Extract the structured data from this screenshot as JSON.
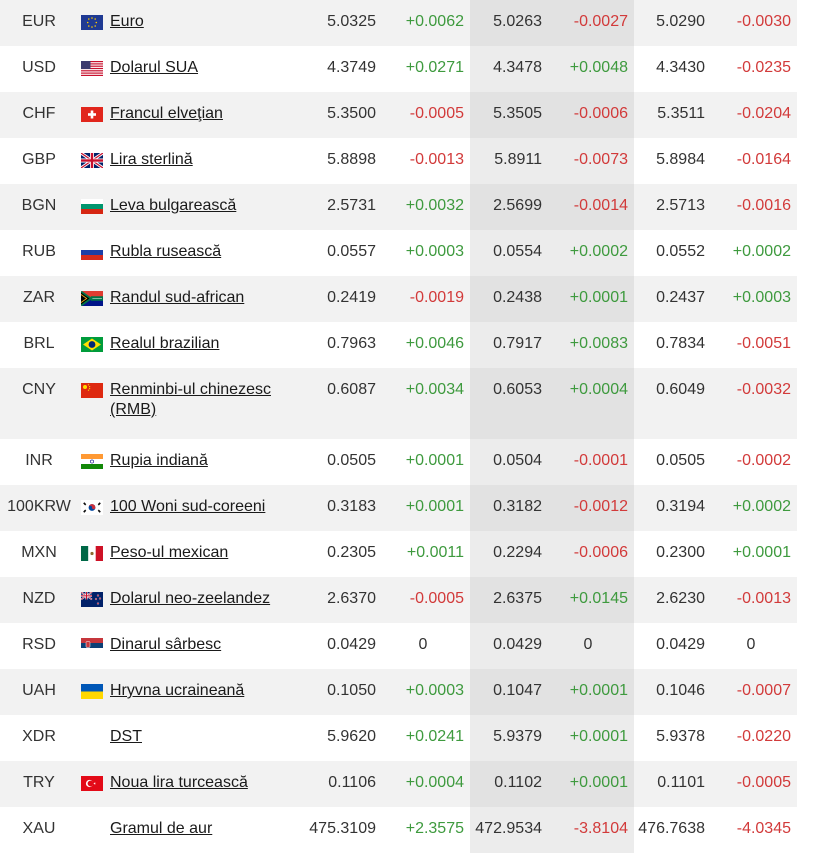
{
  "rates": [
    {
      "code": "EUR",
      "name": "Euro",
      "flag": "eu-flag-icon",
      "v1": "5.0325",
      "c1": "+0.0062",
      "v2": "5.0263",
      "c2": "-0.0027",
      "v3": "5.0290",
      "c3": "-0.0030"
    },
    {
      "code": "USD",
      "name": "Dolarul SUA",
      "flag": "us-flag-icon",
      "v1": "4.3749",
      "c1": "+0.0271",
      "v2": "4.3478",
      "c2": "+0.0048",
      "v3": "4.3430",
      "c3": "-0.0235"
    },
    {
      "code": "CHF",
      "name": "Francul elveţian",
      "flag": "ch-flag-icon",
      "v1": "5.3500",
      "c1": "-0.0005",
      "v2": "5.3505",
      "c2": "-0.0006",
      "v3": "5.3511",
      "c3": "-0.0204"
    },
    {
      "code": "GBP",
      "name": "Lira sterlină",
      "flag": "gb-flag-icon",
      "v1": "5.8898",
      "c1": "-0.0013",
      "v2": "5.8911",
      "c2": "-0.0073",
      "v3": "5.8984",
      "c3": "-0.0164"
    },
    {
      "code": "BGN",
      "name": "Leva bulgarească",
      "flag": "bg-flag-icon",
      "v1": "2.5731",
      "c1": "+0.0032",
      "v2": "2.5699",
      "c2": "-0.0014",
      "v3": "2.5713",
      "c3": "-0.0016"
    },
    {
      "code": "RUB",
      "name": "Rubla rusească",
      "flag": "ru-flag-icon",
      "v1": "0.0557",
      "c1": "+0.0003",
      "v2": "0.0554",
      "c2": "+0.0002",
      "v3": "0.0552",
      "c3": "+0.0002"
    },
    {
      "code": "ZAR",
      "name": "Randul sud-african",
      "flag": "za-flag-icon",
      "v1": "0.2419",
      "c1": "-0.0019",
      "v2": "0.2438",
      "c2": "+0.0001",
      "v3": "0.2437",
      "c3": "+0.0003"
    },
    {
      "code": "BRL",
      "name": "Realul brazilian",
      "flag": "br-flag-icon",
      "v1": "0.7963",
      "c1": "+0.0046",
      "v2": "0.7917",
      "c2": "+0.0083",
      "v3": "0.7834",
      "c3": "-0.0051"
    },
    {
      "code": "CNY",
      "name": "Renminbi-ul chinezesc (RMB)",
      "flag": "cn-flag-icon",
      "v1": "0.6087",
      "c1": "+0.0034",
      "v2": "0.6053",
      "c2": "+0.0004",
      "v3": "0.6049",
      "c3": "-0.0032"
    },
    {
      "code": "INR",
      "name": "Rupia indiană",
      "flag": "in-flag-icon",
      "v1": "0.0505",
      "c1": "+0.0001",
      "v2": "0.0504",
      "c2": "-0.0001",
      "v3": "0.0505",
      "c3": "-0.0002"
    },
    {
      "code": "100KRW",
      "name": "100 Woni sud-coreeni",
      "flag": "kr-flag-icon",
      "v1": "0.3183",
      "c1": "+0.0001",
      "v2": "0.3182",
      "c2": "-0.0012",
      "v3": "0.3194",
      "c3": "+0.0002"
    },
    {
      "code": "MXN",
      "name": "Peso-ul mexican",
      "flag": "mx-flag-icon",
      "v1": "0.2305",
      "c1": "+0.0011",
      "v2": "0.2294",
      "c2": "-0.0006",
      "v3": "0.2300",
      "c3": "+0.0001"
    },
    {
      "code": "NZD",
      "name": "Dolarul neo-zeelandez",
      "flag": "nz-flag-icon",
      "v1": "2.6370",
      "c1": "-0.0005",
      "v2": "2.6375",
      "c2": "+0.0145",
      "v3": "2.6230",
      "c3": "-0.0013"
    },
    {
      "code": "RSD",
      "name": "Dinarul sârbesc",
      "flag": "rs-flag-icon",
      "v1": "0.0429",
      "c1": "0",
      "v2": "0.0429",
      "c2": "0",
      "v3": "0.0429",
      "c3": "0"
    },
    {
      "code": "UAH",
      "name": "Hryvna ucraineană",
      "flag": "ua-flag-icon",
      "v1": "0.1050",
      "c1": "+0.0003",
      "v2": "0.1047",
      "c2": "+0.0001",
      "v3": "0.1046",
      "c3": "-0.0007"
    },
    {
      "code": "XDR",
      "name": "DST",
      "flag": "",
      "v1": "5.9620",
      "c1": "+0.0241",
      "v2": "5.9379",
      "c2": "+0.0001",
      "v3": "5.9378",
      "c3": "-0.0220"
    },
    {
      "code": "TRY",
      "name": "Noua lira turcească",
      "flag": "tr-flag-icon",
      "v1": "0.1106",
      "c1": "+0.0004",
      "v2": "0.1102",
      "c2": "+0.0001",
      "v3": "0.1101",
      "c3": "-0.0005"
    },
    {
      "code": "XAU",
      "name": "Gramul de aur",
      "flag": "",
      "v1": "475.3109",
      "c1": "+2.3575",
      "v2": "472.9534",
      "c2": "-3.8104",
      "v3": "476.7638",
      "c3": "-4.0345"
    }
  ],
  "colors": {
    "up": "#3e9a3e",
    "down": "#d23a3a",
    "zebra": "#f2f2f2",
    "mid_column": "#ececec"
  }
}
